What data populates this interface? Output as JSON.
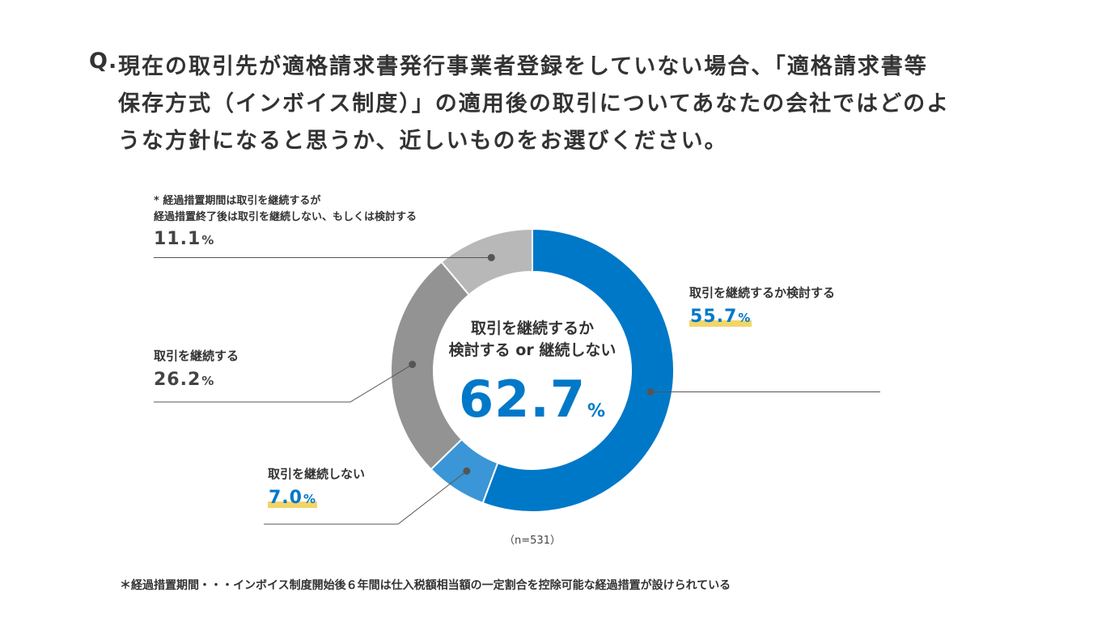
{
  "question": {
    "mark": "Q.",
    "lines": [
      "現在の取引先が適格請求書発行事業者登録をしていない場合、「適格請求書等",
      "保存方式（インボイス制度）」の適用後の取引についてあなたの会社ではどのよ",
      "うな方針になると思うか、近しいものをお選びください。"
    ]
  },
  "chart_data": {
    "type": "pie",
    "donut": true,
    "series": [
      {
        "name": "取引を継続するか検討する",
        "value": 55.7,
        "color": "#0078c8"
      },
      {
        "name": "取引を継続しない",
        "value": 7.0,
        "color": "#3a96d6"
      },
      {
        "name": "取引を継続する",
        "value": 26.2,
        "color": "#939393"
      },
      {
        "name": "経過措置期間は取引を継続するが経過措置終了後は取引を継続しない、もしくは検討する",
        "value": 11.1,
        "color": "#b8b8b8"
      }
    ],
    "center_label": [
      "取引を継続するか",
      "検討する or 継続しない"
    ],
    "center_value": "62.7",
    "n": "（n=531）"
  },
  "labels": {
    "consider": {
      "name": "取引を継続するか検討する",
      "value": "55.7",
      "unit": "%"
    },
    "discontinue": {
      "name": "取引を継続しない",
      "value": "7.0",
      "unit": "%"
    },
    "continue": {
      "name": "取引を継続する",
      "value": "26.2",
      "unit": "%"
    },
    "transition": {
      "note1": "* 経過措置期間は取引を継続するが",
      "note2": "経過措置終了後は取引を継続しない、もしくは検討する",
      "value": "11.1",
      "unit": "%"
    }
  },
  "center": {
    "unit": "%"
  },
  "footnote": "＊経過措置期間・・・インボイス制度開始後６年間は仕入税額相当額の一定割合を控除可能な経過措置が設けられている"
}
